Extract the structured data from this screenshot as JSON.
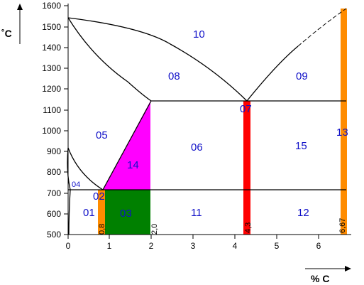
{
  "axis": {
    "y_unit": "˚C",
    "x_unit": "% C",
    "y_ticks": [
      "1600",
      "1500",
      "1400",
      "1300",
      "1200",
      "1100",
      "1000",
      "900",
      "800",
      "700",
      "600",
      "500"
    ],
    "x_ticks": [
      "0",
      "1",
      "2",
      "3",
      "4",
      "5",
      "6"
    ]
  },
  "regions": {
    "r10": "10",
    "r08": "08",
    "r09": "09",
    "r07": "07",
    "r05": "05",
    "r14": "14",
    "r06": "06",
    "r15": "15",
    "r13": "13",
    "r04": "04",
    "r02": "02",
    "r01": "01",
    "r03": "03",
    "r11": "11",
    "r12": "12"
  },
  "markers": {
    "m08": "0,8",
    "m20": "2,0",
    "m43": "4,3",
    "m667": "6,67"
  },
  "colors": {
    "magenta": "#ff00ff",
    "green": "#008000",
    "orange": "#ff8c00",
    "red": "#ff0000",
    "label_blue": "#1010c8"
  }
}
